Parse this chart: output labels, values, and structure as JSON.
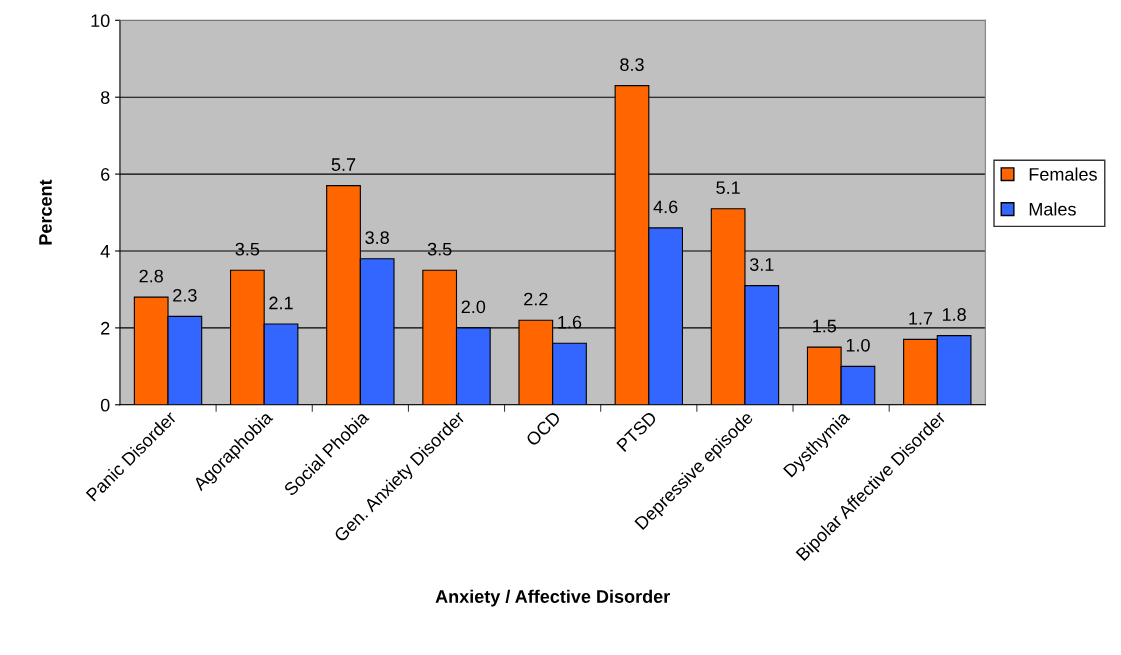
{
  "chart_data": {
    "type": "bar",
    "xlabel": "Anxiety / Affective Disorder",
    "ylabel": "Percent",
    "categories": [
      "Panic Disorder",
      "Agoraphobia",
      "Social Phobia",
      "Gen. Anxiety Disorder",
      "OCD",
      "PTSD",
      "Depressive episode",
      "Dysthymia",
      "Bipolar Affective Disorder"
    ],
    "series": [
      {
        "name": "Females",
        "color": "#ff6600",
        "values": [
          2.8,
          3.5,
          5.7,
          3.5,
          2.2,
          8.3,
          5.1,
          1.5,
          1.7
        ],
        "value_labels": [
          "2.8",
          "3.5",
          "5.7",
          "3.5",
          "2.2",
          "8.3",
          "5.1",
          "1.5",
          "1.7"
        ]
      },
      {
        "name": "Males",
        "color": "#3366ff",
        "values": [
          2.3,
          2.1,
          3.8,
          2.0,
          1.6,
          4.6,
          3.1,
          1.0,
          1.8
        ],
        "value_labels": [
          "2.3",
          "2.1",
          "3.8",
          "2.0",
          "1.6",
          "4.6",
          "3.1",
          "1.0",
          "1.8"
        ]
      }
    ],
    "ylim": [
      0,
      10
    ],
    "yticks": [
      0,
      2,
      4,
      6,
      8,
      10
    ],
    "grid": "y",
    "legend": "right"
  }
}
